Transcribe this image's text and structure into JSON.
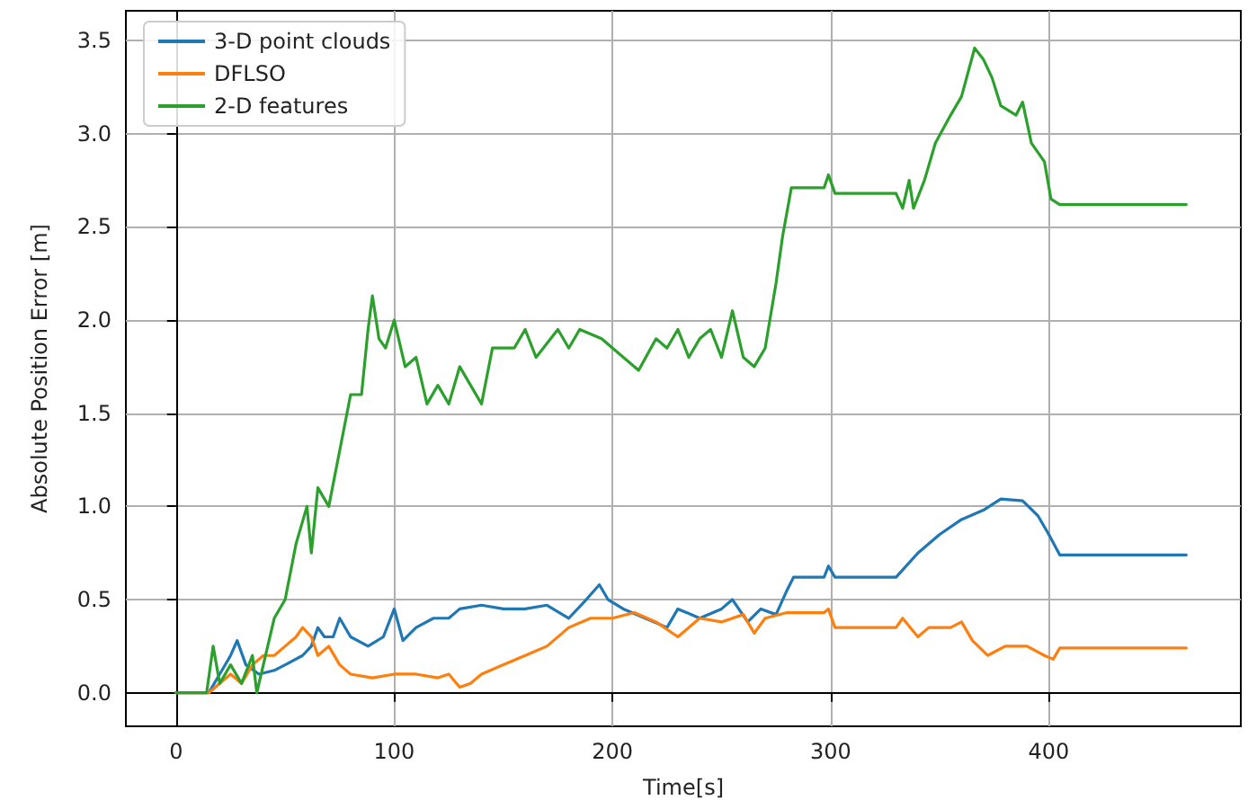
{
  "chart_data": {
    "type": "line",
    "xlabel": "Time[s]",
    "ylabel": "Absolute Position Error [m]",
    "xlim": [
      -23,
      488
    ],
    "xticks": [
      0,
      100,
      200,
      300,
      400
    ],
    "ylim": [
      -0.18,
      3.66
    ],
    "yticks": [
      {
        "value": 0,
        "label": "0.0"
      },
      0.5,
      {
        "value": 1,
        "label": "1.0"
      },
      1.5,
      {
        "value": 2,
        "label": "2.0"
      },
      2.5,
      {
        "value": 3,
        "label": "3.0"
      },
      3.5
    ],
    "grid": true,
    "legend": "top left",
    "marker": "none",
    "line_style": "solid",
    "series": [
      {
        "name": "3-D point clouds",
        "color": "#1f77b4",
        "x": [
          0,
          15,
          20,
          25,
          28,
          32,
          38,
          45,
          50,
          58,
          62,
          65,
          68,
          72,
          75,
          80,
          88,
          95,
          100,
          104,
          110,
          118,
          125,
          130,
          140,
          150,
          160,
          170,
          180,
          188,
          194,
          198,
          205,
          215,
          225,
          230,
          240,
          250,
          255,
          262,
          268,
          275,
          280,
          283,
          297,
          299,
          302,
          330,
          340,
          350,
          360,
          370,
          378,
          388,
          395,
          400,
          405,
          463
        ],
        "values": [
          0,
          0,
          0.1,
          0.2,
          0.28,
          0.15,
          0.1,
          0.12,
          0.15,
          0.2,
          0.25,
          0.35,
          0.3,
          0.3,
          0.4,
          0.3,
          0.25,
          0.3,
          0.45,
          0.28,
          0.35,
          0.4,
          0.4,
          0.45,
          0.47,
          0.45,
          0.45,
          0.47,
          0.4,
          0.5,
          0.58,
          0.5,
          0.45,
          0.4,
          0.35,
          0.45,
          0.4,
          0.45,
          0.5,
          0.38,
          0.45,
          0.42,
          0.55,
          0.62,
          0.62,
          0.68,
          0.62,
          0.62,
          0.75,
          0.85,
          0.93,
          0.98,
          1.04,
          1.03,
          0.95,
          0.85,
          0.74,
          0.74
        ]
      },
      {
        "name": "DFLSO",
        "color": "#ff7f0e",
        "x": [
          0,
          15,
          20,
          25,
          30,
          35,
          40,
          45,
          50,
          55,
          58,
          62,
          65,
          70,
          75,
          80,
          90,
          100,
          110,
          120,
          125,
          130,
          135,
          140,
          150,
          160,
          170,
          180,
          190,
          200,
          210,
          220,
          230,
          240,
          250,
          260,
          265,
          270,
          280,
          297,
          299,
          302,
          330,
          333,
          340,
          345,
          355,
          360,
          365,
          372,
          380,
          390,
          398,
          402,
          405,
          463
        ],
        "values": [
          0,
          0,
          0.05,
          0.1,
          0.05,
          0.15,
          0.2,
          0.2,
          0.25,
          0.3,
          0.35,
          0.3,
          0.2,
          0.25,
          0.15,
          0.1,
          0.08,
          0.1,
          0.1,
          0.08,
          0.1,
          0.03,
          0.05,
          0.1,
          0.15,
          0.2,
          0.25,
          0.35,
          0.4,
          0.4,
          0.43,
          0.38,
          0.3,
          0.4,
          0.38,
          0.42,
          0.32,
          0.4,
          0.43,
          0.43,
          0.45,
          0.35,
          0.35,
          0.4,
          0.3,
          0.35,
          0.35,
          0.38,
          0.28,
          0.2,
          0.25,
          0.25,
          0.2,
          0.18,
          0.24,
          0.24
        ]
      },
      {
        "name": "2-D features",
        "color": "#2ca02c",
        "x": [
          0,
          14,
          17,
          20,
          25,
          30,
          35,
          37,
          40,
          45,
          50,
          55,
          60,
          62,
          65,
          70,
          75,
          80,
          85,
          88,
          90,
          93,
          96,
          100,
          105,
          110,
          115,
          120,
          125,
          130,
          135,
          140,
          145,
          155,
          160,
          165,
          175,
          180,
          185,
          195,
          205,
          212,
          220,
          225,
          230,
          235,
          240,
          245,
          250,
          255,
          260,
          265,
          270,
          275,
          278,
          282,
          297,
          299,
          302,
          330,
          333,
          336,
          338,
          343,
          348,
          355,
          360,
          366,
          370,
          374,
          378,
          385,
          388,
          392,
          398,
          401,
          405,
          463
        ],
        "values": [
          0,
          0,
          0.25,
          0.05,
          0.15,
          0.05,
          0.2,
          0,
          0.15,
          0.4,
          0.5,
          0.8,
          1.0,
          0.75,
          1.1,
          1.0,
          1.3,
          1.6,
          1.6,
          1.95,
          2.13,
          1.9,
          1.85,
          2.0,
          1.75,
          1.8,
          1.55,
          1.65,
          1.55,
          1.75,
          1.65,
          1.55,
          1.85,
          1.85,
          1.95,
          1.8,
          1.95,
          1.85,
          1.95,
          1.9,
          1.8,
          1.73,
          1.9,
          1.85,
          1.95,
          1.8,
          1.9,
          1.95,
          1.8,
          2.05,
          1.8,
          1.75,
          1.85,
          2.2,
          2.45,
          2.71,
          2.71,
          2.78,
          2.68,
          2.68,
          2.6,
          2.75,
          2.6,
          2.75,
          2.95,
          3.1,
          3.2,
          3.46,
          3.4,
          3.3,
          3.15,
          3.1,
          3.17,
          2.95,
          2.85,
          2.65,
          2.62,
          2.62
        ]
      }
    ]
  }
}
